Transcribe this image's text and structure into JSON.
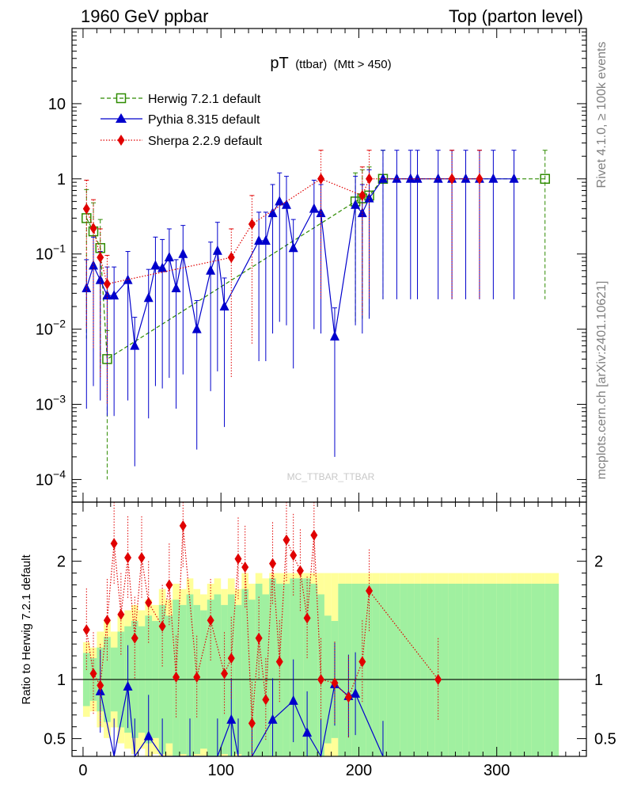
{
  "header": {
    "left": "1960 GeV ppbar",
    "right": "Top (parton level)"
  },
  "side": {
    "top": "Rivet 4.1.0, ≥ 100k events",
    "bottom": "mcplots.cern.ch [arXiv:2401.10621]"
  },
  "watermark": "MC_TTBAR_TTBAR",
  "colors": {
    "herwig": "#2e8b00",
    "pythia": "#0000cc",
    "sherpa": "#e00000",
    "band_inner": "#a0f0a0",
    "band_outer": "#ffff99"
  },
  "chart_data": [
    {
      "type": "line",
      "title": "pT",
      "title_sub": "(ttbar)",
      "title_cut": "(Mtt > 450)",
      "yscale": "log",
      "xlim": [
        -8,
        365
      ],
      "ylim": [
        5e-05,
        100
      ],
      "y_ticks": [
        {
          "v": 10,
          "base": "10",
          "exp": ""
        },
        {
          "v": 1,
          "base": "1",
          "exp": ""
        },
        {
          "v": 0.1,
          "base": "10",
          "exp": "−1"
        },
        {
          "v": 0.01,
          "base": "10",
          "exp": "−2"
        },
        {
          "v": 0.001,
          "base": "10",
          "exp": "−3"
        },
        {
          "v": 0.0001,
          "base": "10",
          "exp": "−4"
        }
      ],
      "legend": [
        {
          "key": "herwig",
          "label": "Herwig 7.2.1 default",
          "marker": "square",
          "style": "dashed"
        },
        {
          "key": "pythia",
          "label": "Pythia 8.315 default",
          "marker": "triangle",
          "style": "solid"
        },
        {
          "key": "sherpa",
          "label": "Sherpa 2.2.9 default",
          "marker": "diamond",
          "style": "dotted"
        }
      ],
      "series": [
        {
          "key": "herwig",
          "name": "Herwig 7.2.1 default",
          "x": [
            2.5,
            7.5,
            12.5,
            17.5,
            197.5,
            202.5,
            207.5,
            217.5,
            335
          ],
          "y": [
            0.3,
            0.2,
            0.12,
            0.004,
            0.5,
            0.55,
            0.6,
            1.0,
            1.0
          ]
        },
        {
          "key": "pythia",
          "name": "Pythia 8.315 default",
          "x": [
            2.5,
            7.5,
            12.5,
            17.5,
            22.5,
            32.5,
            37.5,
            47.5,
            52.5,
            57.5,
            62.5,
            67.5,
            72.5,
            82.5,
            92.5,
            97.5,
            102.5,
            127.5,
            132.5,
            137.5,
            142.5,
            147.5,
            152.5,
            167.5,
            172.5,
            182.5,
            197.5,
            202.5,
            207.5,
            217.5,
            227.5,
            237.5,
            242.5,
            257.5,
            267.5,
            277.5,
            287.5,
            297.5,
            312.5
          ],
          "y": [
            0.035,
            0.07,
            0.045,
            0.028,
            0.028,
            0.045,
            0.006,
            0.026,
            0.07,
            0.065,
            0.09,
            0.035,
            0.1,
            0.01,
            0.06,
            0.11,
            0.02,
            0.15,
            0.15,
            0.35,
            0.5,
            0.45,
            0.12,
            0.4,
            0.35,
            0.008,
            0.45,
            0.35,
            0.55,
            1.0,
            1.0,
            1.0,
            1.0,
            1.0,
            1.0,
            1.0,
            1.0,
            1.0,
            1.0
          ]
        },
        {
          "key": "sherpa",
          "name": "Sherpa 2.2.9 default",
          "x": [
            2.5,
            7.5,
            12.5,
            17.5,
            107.5,
            122.5,
            172.5,
            202.5,
            207.5,
            267.5,
            287.5
          ],
          "y": [
            0.4,
            0.22,
            0.09,
            0.04,
            0.09,
            0.25,
            1.0,
            0.6,
            1.0,
            1.0,
            1.0
          ]
        }
      ]
    },
    {
      "type": "line",
      "ylabel": "Ratio to Herwig 7.2.1 default",
      "xlim": [
        -8,
        365
      ],
      "ylim": [
        0.35,
        2.5
      ],
      "x_ticks": [
        0,
        100,
        200,
        300
      ],
      "y_ticks": [
        0.5,
        1,
        2
      ],
      "reference": 1,
      "series": [
        {
          "key": "pythia",
          "name": "Pythia 8.315 default",
          "x": [
            12.5,
            22.5,
            32.5,
            37.5,
            47.5,
            57.5,
            77.5,
            97.5,
            107.5,
            112.5,
            122.5,
            137.5,
            152.5,
            162.5,
            172.5,
            182.5,
            192.5,
            197.5,
            217.5
          ],
          "y": [
            0.9,
            0.32,
            0.94,
            0.32,
            0.52,
            0.32,
            0.32,
            0.32,
            0.66,
            0.32,
            0.32,
            0.66,
            0.82,
            0.55,
            0.32,
            0.96,
            0.86,
            0.88,
            0.3
          ]
        },
        {
          "key": "sherpa",
          "name": "Sherpa 2.2.9 default",
          "x": [
            2.5,
            7.5,
            12.5,
            17.5,
            22.5,
            27.5,
            32.5,
            37.5,
            42.5,
            47.5,
            57.5,
            62.5,
            67.5,
            72.5,
            82.5,
            92.5,
            102.5,
            107.5,
            112.5,
            117.5,
            122.5,
            127.5,
            132.5,
            137.5,
            142.5,
            147.5,
            152.5,
            157.5,
            162.5,
            167.5,
            172.5,
            182.5,
            192.5,
            202.5,
            207.5,
            257.5
          ],
          "y": [
            1.42,
            1.05,
            0.95,
            1.5,
            2.15,
            1.55,
            2.03,
            1.35,
            2.03,
            1.65,
            1.45,
            1.8,
            1.02,
            2.3,
            1.02,
            1.5,
            1.05,
            1.18,
            2.02,
            1.95,
            0.63,
            1.35,
            0.83,
            1.98,
            1.15,
            2.18,
            2.05,
            1.92,
            1.52,
            2.22,
            1.0,
            0.97,
            0.85,
            1.15,
            1.75,
            1.0
          ]
        }
      ],
      "band_green": [
        0.25,
        0.2,
        0.3,
        0.4,
        0.3,
        0.45,
        0.5,
        0.55,
        0.5,
        0.6,
        0.55,
        0.7,
        0.6,
        0.75,
        0.7,
        0.8,
        0.7,
        0.65,
        0.75,
        0.8,
        0.7,
        0.8,
        0.7,
        0.85,
        0.75,
        0.9,
        0.8,
        0.95,
        0.9,
        0.9,
        0.95,
        0.95,
        0.95,
        0.9,
        0.8,
        0.6,
        0.55,
        0.9,
        0.9,
        0.9,
        0.9,
        0.9,
        0.9,
        0.9,
        0.9,
        0.9,
        0.9,
        0.9,
        0.9,
        0.9,
        0.9,
        0.9,
        0.9,
        0.9,
        0.9,
        0.9,
        0.9,
        0.9,
        0.9,
        0.9,
        0.9,
        0.9,
        0.9,
        0.9,
        0.9,
        0.9,
        0.9,
        0.9,
        0.9
      ],
      "band_yellow": [
        0.35,
        0.3,
        0.45,
        0.55,
        0.45,
        0.6,
        0.65,
        0.7,
        0.65,
        0.75,
        0.7,
        0.85,
        0.75,
        0.9,
        0.85,
        0.95,
        0.85,
        0.8,
        0.9,
        0.95,
        0.85,
        0.95,
        0.85,
        1,
        0.9,
        1,
        0.95,
        1,
        1,
        1,
        1,
        1,
        1,
        1,
        1,
        1,
        1,
        1,
        1,
        1,
        1,
        1,
        1,
        1,
        1,
        1,
        1,
        1,
        1,
        1,
        1,
        1,
        1,
        1,
        1,
        1,
        1,
        1,
        1,
        1,
        1,
        1,
        1,
        1,
        1,
        1,
        1,
        1,
        1
      ]
    }
  ]
}
